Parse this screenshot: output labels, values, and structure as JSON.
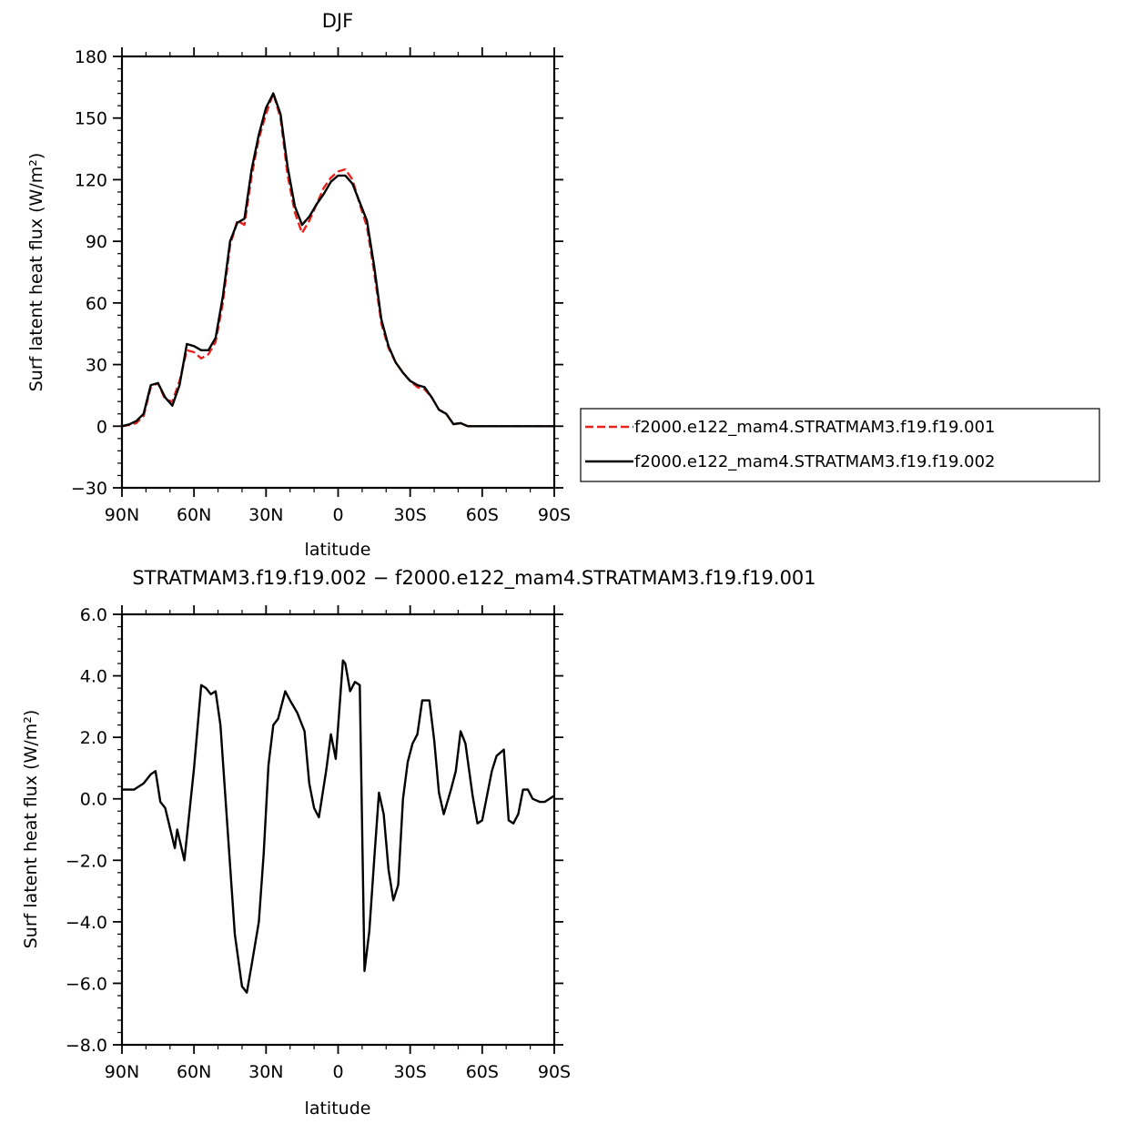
{
  "chart_data": [
    {
      "type": "line",
      "title": "DJF",
      "xlabel": "latitude",
      "ylabel": "Surf latent heat flux (W/m²)",
      "ylim": [
        -30,
        180
      ],
      "yticks": [
        -30,
        0,
        30,
        60,
        90,
        120,
        150,
        180
      ],
      "ytick_labels": [
        "−30",
        "0",
        "30",
        "60",
        "90",
        "120",
        "150",
        "180"
      ],
      "xlim": [
        90,
        -90
      ],
      "xticks": [
        90,
        60,
        30,
        0,
        -30,
        -60,
        -90
      ],
      "xtick_labels": [
        "90N",
        "60N",
        "30N",
        "0",
        "30S",
        "60S",
        "90S"
      ],
      "legend_placement": "right",
      "x": [
        90,
        87,
        84,
        81,
        78,
        75,
        72,
        69,
        66,
        63,
        60,
        57,
        54,
        51,
        48,
        45,
        42,
        39,
        36,
        33,
        30,
        27,
        24,
        21,
        18,
        15,
        12,
        9,
        6,
        3,
        0,
        -3,
        -6,
        -9,
        -12,
        -15,
        -18,
        -21,
        -24,
        -27,
        -30,
        -33,
        -36,
        -39,
        -42,
        -45,
        -48,
        -51,
        -54,
        -57,
        -60,
        -63,
        -66,
        -69,
        -72,
        -75,
        -78,
        -81,
        -84,
        -87,
        -90
      ],
      "series": [
        {
          "name": "f2000.e122_mam4.STRATMAM3.f19.f19.001",
          "color": "#e8211b",
          "dash": "dashed",
          "values": [
            0,
            0.6,
            1.5,
            5,
            19,
            21,
            13,
            12,
            22,
            37,
            36,
            33,
            35,
            41,
            60,
            88,
            100,
            98,
            122,
            140,
            152,
            162,
            150,
            122,
            104,
            94,
            100,
            108,
            116,
            121,
            124,
            125,
            120,
            108,
            97,
            75,
            50,
            38,
            31,
            26,
            22,
            19,
            18,
            14,
            8,
            6,
            1,
            1.5,
            0,
            0,
            0,
            0,
            0,
            0,
            0,
            0,
            0,
            0,
            0,
            0,
            0
          ]
        },
        {
          "name": "f2000.e122_mam4.STRATMAM3.f19.f19.002",
          "color": "#000000",
          "dash": "solid",
          "values": [
            0,
            0.9,
            2.5,
            6,
            20,
            21,
            14,
            10,
            20,
            40,
            39,
            37,
            37,
            43,
            63,
            90,
            99,
            101,
            125,
            142,
            155,
            162,
            152,
            126,
            107,
            98,
            102,
            108,
            113,
            119,
            122,
            122,
            118,
            109,
            100,
            78,
            52,
            39,
            31,
            26,
            22,
            20,
            19,
            14,
            8,
            6,
            1,
            1.5,
            0,
            0,
            0,
            0,
            0,
            0,
            0,
            0,
            0,
            0,
            0,
            0,
            0
          ]
        }
      ]
    },
    {
      "type": "line",
      "title": "STRATMAM3.f19.f19.002 − f2000.e122_mam4.STRATMAM3.f19.f19.001",
      "xlabel": "latitude",
      "ylabel": "Surf latent heat flux (W/m²)",
      "ylim": [
        -8,
        6
      ],
      "yticks": [
        -8,
        -6,
        -4,
        -2,
        0,
        2,
        4,
        6
      ],
      "ytick_labels": [
        "−8.0",
        "−6.0",
        "−4.0",
        "−2.0",
        "0.0",
        "2.0",
        "4.0",
        "6.0"
      ],
      "xlim": [
        90,
        -90
      ],
      "xticks": [
        90,
        60,
        30,
        0,
        -30,
        -60,
        -90
      ],
      "xtick_labels": [
        "90N",
        "60N",
        "30N",
        "0",
        "30S",
        "60S",
        "90S"
      ],
      "series": [
        {
          "color": "#000000",
          "x": [
            90,
            85,
            81,
            78,
            76,
            74,
            72,
            68,
            67,
            64,
            60,
            57,
            55,
            53,
            51,
            49,
            43,
            40,
            38,
            36,
            33,
            31,
            29,
            27,
            25,
            22,
            20,
            17,
            14,
            12,
            10,
            8,
            5,
            3,
            1,
            -2,
            -3,
            -5,
            -7,
            -9,
            -11,
            -13,
            -15,
            -17,
            -19,
            -21,
            -23,
            -25,
            -27,
            -29,
            -31,
            -33,
            -35,
            -38,
            -40,
            -42,
            -44,
            -47,
            -49,
            -51,
            -53,
            -56,
            -58,
            -60,
            -62,
            -64,
            -66,
            -69,
            -71,
            -73,
            -75,
            -77,
            -79,
            -81,
            -84,
            -86,
            -88,
            -90
          ],
          "values": [
            0.3,
            0.3,
            0.5,
            0.8,
            0.9,
            -0.1,
            -0.3,
            -1.6,
            -1.0,
            -2.0,
            1.0,
            3.7,
            3.6,
            3.4,
            3.5,
            2.4,
            -4.4,
            -6.1,
            -6.3,
            -5.4,
            -4.0,
            -1.8,
            1.1,
            2.4,
            2.6,
            3.5,
            3.2,
            2.8,
            2.2,
            0.5,
            -0.3,
            -0.6,
            0.9,
            2.1,
            1.3,
            4.5,
            4.4,
            3.5,
            3.8,
            3.7,
            -5.6,
            -4.3,
            -2.0,
            0.2,
            -0.5,
            -2.3,
            -3.3,
            -2.8,
            0.0,
            1.2,
            1.8,
            2.1,
            3.2,
            3.2,
            1.9,
            0.2,
            -0.5,
            0.3,
            0.9,
            2.2,
            1.8,
            0.1,
            -0.8,
            -0.7,
            0.1,
            0.9,
            1.4,
            1.6,
            -0.7,
            -0.8,
            -0.5,
            0.3,
            0.3,
            0.0,
            -0.1,
            -0.1,
            0.0,
            0.1
          ]
        }
      ]
    }
  ]
}
